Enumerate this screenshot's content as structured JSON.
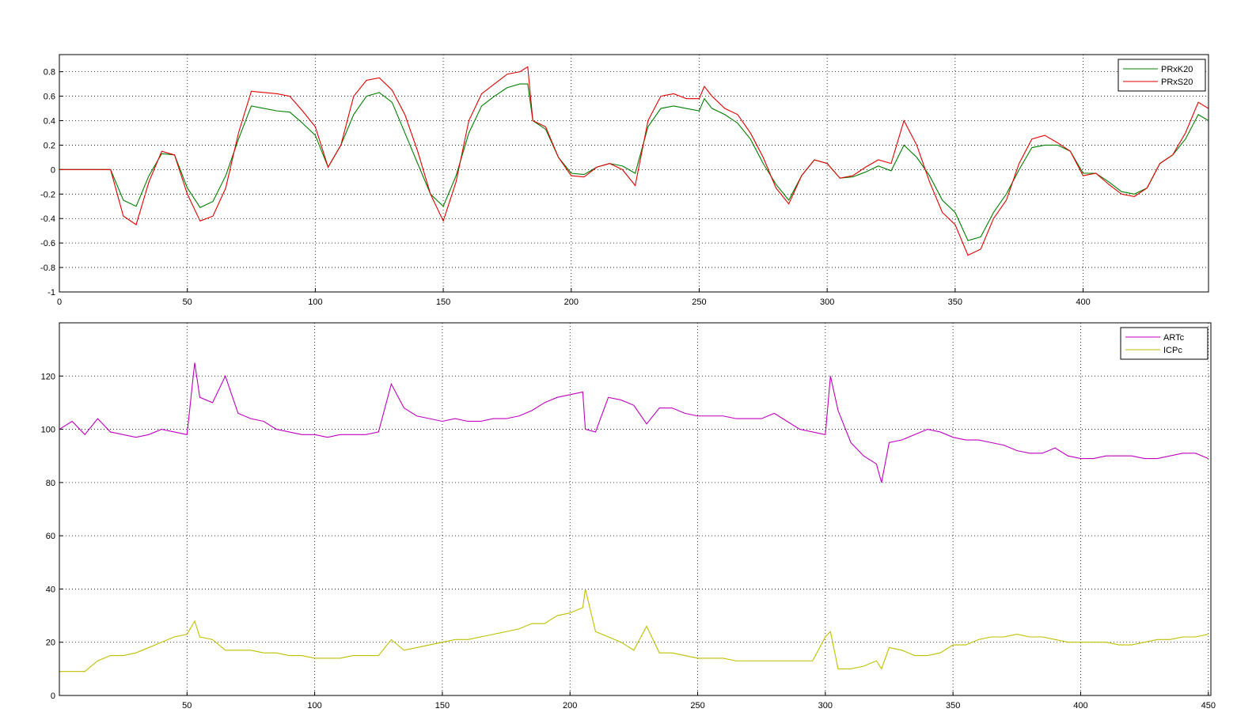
{
  "chart_data": [
    {
      "type": "line",
      "x": [
        0,
        5,
        10,
        15,
        20,
        25,
        30,
        35,
        40,
        45,
        50,
        55,
        60,
        65,
        70,
        75,
        80,
        85,
        90,
        95,
        100,
        105,
        110,
        115,
        120,
        125,
        130,
        135,
        140,
        145,
        150,
        155,
        160,
        165,
        170,
        175,
        180,
        183,
        185,
        190,
        195,
        200,
        205,
        210,
        215,
        220,
        225,
        230,
        235,
        240,
        245,
        250,
        252,
        255,
        260,
        265,
        270,
        275,
        280,
        285,
        290,
        295,
        300,
        305,
        310,
        315,
        320,
        325,
        330,
        335,
        340,
        345,
        350,
        355,
        360,
        365,
        370,
        375,
        380,
        385,
        390,
        395,
        400,
        405,
        410,
        415,
        420,
        425,
        430,
        435,
        440,
        445,
        449
      ],
      "series": [
        {
          "name": "PRxK20",
          "color": "#007f00",
          "values": [
            0,
            0,
            0,
            0,
            0,
            -0.25,
            -0.3,
            -0.05,
            0.13,
            0.12,
            -0.15,
            -0.31,
            -0.26,
            -0.05,
            0.25,
            0.52,
            0.5,
            0.48,
            0.47,
            0.38,
            0.28,
            0.02,
            0.2,
            0.45,
            0.6,
            0.63,
            0.55,
            0.3,
            0.05,
            -0.2,
            -0.3,
            -0.05,
            0.3,
            0.52,
            0.6,
            0.67,
            0.7,
            0.7,
            0.4,
            0.33,
            0.1,
            -0.03,
            -0.04,
            0.02,
            0.05,
            0.03,
            -0.03,
            0.35,
            0.5,
            0.52,
            0.5,
            0.48,
            0.58,
            0.5,
            0.45,
            0.38,
            0.25,
            0.05,
            -0.12,
            -0.25,
            -0.05,
            0.08,
            0.05,
            -0.07,
            -0.06,
            -0.02,
            0.03,
            -0.01,
            0.2,
            0.1,
            -0.05,
            -0.25,
            -0.35,
            -0.58,
            -0.55,
            -0.35,
            -0.2,
            0,
            0.18,
            0.2,
            0.2,
            0.15,
            -0.03,
            -0.03,
            -0.1,
            -0.18,
            -0.2,
            -0.15,
            0.05,
            0.12,
            0.25,
            0.45,
            0.4
          ]
        },
        {
          "name": "PRxS20",
          "color": "#e00000",
          "values": [
            0,
            0,
            0,
            0,
            0,
            -0.38,
            -0.45,
            -0.1,
            0.15,
            0.12,
            -0.2,
            -0.42,
            -0.38,
            -0.15,
            0.3,
            0.64,
            0.63,
            0.62,
            0.6,
            0.48,
            0.35,
            0.02,
            0.2,
            0.6,
            0.73,
            0.75,
            0.65,
            0.45,
            0.15,
            -0.2,
            -0.42,
            -0.1,
            0.4,
            0.62,
            0.7,
            0.78,
            0.8,
            0.84,
            0.4,
            0.35,
            0.1,
            -0.05,
            -0.06,
            0.02,
            0.05,
            0,
            -0.13,
            0.4,
            0.6,
            0.62,
            0.58,
            0.58,
            0.68,
            0.6,
            0.5,
            0.45,
            0.3,
            0.1,
            -0.15,
            -0.28,
            -0.05,
            0.08,
            0.05,
            -0.07,
            -0.05,
            0.02,
            0.08,
            0.05,
            0.4,
            0.2,
            -0.1,
            -0.35,
            -0.45,
            -0.7,
            -0.65,
            -0.4,
            -0.25,
            0.05,
            0.25,
            0.28,
            0.22,
            0.15,
            -0.05,
            -0.03,
            -0.12,
            -0.2,
            -0.22,
            -0.15,
            0.05,
            0.12,
            0.3,
            0.55,
            0.5
          ]
        }
      ],
      "xlim": [
        0,
        449
      ],
      "xticks": [
        0,
        50,
        100,
        150,
        200,
        250,
        300,
        350,
        400
      ],
      "ylim": [
        -1,
        0.94
      ],
      "yticks": [
        -1,
        -0.8,
        -0.6,
        -0.4,
        -0.2,
        0,
        0.2,
        0.4,
        0.6,
        0.8
      ],
      "grid": true,
      "legend": "upper right"
    },
    {
      "type": "line",
      "x": [
        0,
        5,
        10,
        15,
        20,
        25,
        30,
        35,
        40,
        45,
        50,
        53,
        55,
        60,
        65,
        70,
        75,
        80,
        85,
        90,
        95,
        100,
        105,
        110,
        115,
        120,
        125,
        130,
        135,
        140,
        145,
        150,
        155,
        160,
        165,
        170,
        175,
        180,
        185,
        190,
        195,
        200,
        205,
        206,
        210,
        215,
        220,
        225,
        230,
        235,
        240,
        245,
        250,
        255,
        260,
        265,
        270,
        275,
        280,
        285,
        290,
        295,
        300,
        302,
        305,
        310,
        315,
        320,
        322,
        325,
        330,
        335,
        340,
        345,
        350,
        355,
        360,
        365,
        370,
        375,
        380,
        385,
        390,
        395,
        400,
        405,
        410,
        415,
        420,
        425,
        430,
        435,
        440,
        445,
        450
      ],
      "series": [
        {
          "name": "ARTc",
          "color": "#bf00bf",
          "values": [
            100,
            103,
            98,
            104,
            99,
            98,
            97,
            98,
            100,
            99,
            98,
            125,
            112,
            110,
            120,
            106,
            104,
            103,
            100,
            99,
            98,
            98,
            97,
            98,
            98,
            98,
            99,
            117,
            108,
            105,
            104,
            103,
            104,
            103,
            103,
            104,
            104,
            105,
            107,
            110,
            112,
            113,
            114,
            100,
            99,
            112,
            111,
            109,
            102,
            108,
            108,
            106,
            105,
            105,
            105,
            104,
            104,
            104,
            106,
            103,
            100,
            99,
            98,
            120,
            107,
            95,
            90,
            87,
            80,
            95,
            96,
            98,
            100,
            99,
            97,
            96,
            96,
            95,
            94,
            92,
            91,
            91,
            93,
            90,
            89,
            89,
            90,
            90,
            90,
            89,
            89,
            90,
            91,
            91,
            89
          ]
        },
        {
          "name": "ICPc",
          "color": "#bfbf00",
          "values": [
            9,
            9,
            9,
            13,
            15,
            15,
            16,
            18,
            20,
            22,
            23,
            28,
            22,
            21,
            17,
            17,
            17,
            16,
            16,
            15,
            15,
            14,
            14,
            14,
            15,
            15,
            15,
            21,
            17,
            18,
            19,
            20,
            21,
            21,
            22,
            23,
            24,
            25,
            27,
            27,
            30,
            31,
            33,
            40,
            24,
            22,
            20,
            17,
            26,
            16,
            16,
            15,
            14,
            14,
            14,
            13,
            13,
            13,
            13,
            13,
            13,
            13,
            22,
            24,
            10,
            10,
            11,
            13,
            10,
            18,
            17,
            15,
            15,
            16,
            19,
            19,
            21,
            22,
            22,
            23,
            22,
            22,
            21,
            20,
            20,
            20,
            20,
            19,
            19,
            20,
            21,
            21,
            22,
            22,
            23
          ]
        }
      ],
      "xlim": [
        0,
        451
      ],
      "xticks": [
        50,
        100,
        150,
        200,
        250,
        300,
        350,
        400,
        450
      ],
      "ylim": [
        0,
        140
      ],
      "yticks": [
        0,
        20,
        40,
        60,
        80,
        100,
        120
      ],
      "grid": true,
      "legend": "upper right"
    }
  ]
}
